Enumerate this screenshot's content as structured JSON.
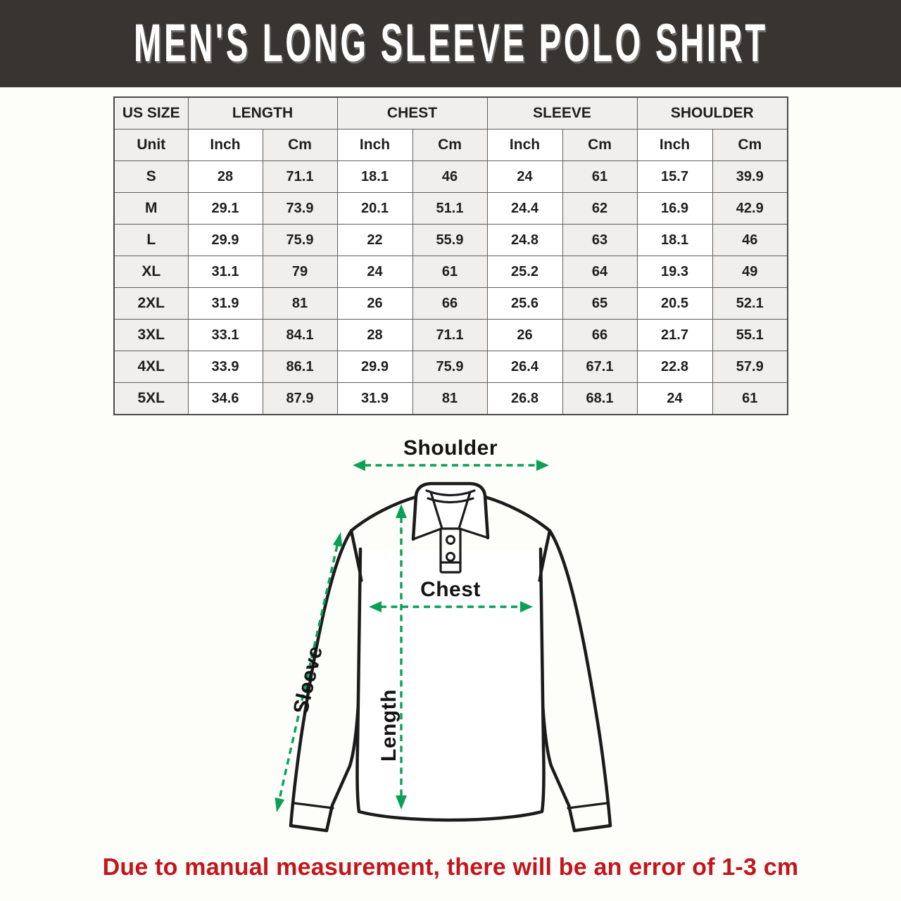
{
  "header": {
    "title": "MEN'S LONG SLEEVE POLO SHIRT"
  },
  "table": {
    "groups": [
      {
        "label": "US SIZE"
      },
      {
        "label": "LENGTH"
      },
      {
        "label": "CHEST"
      },
      {
        "label": "SLEEVE"
      },
      {
        "label": "SHOULDER"
      }
    ],
    "unit_row": [
      "Unit",
      "Inch",
      "Cm",
      "Inch",
      "Cm",
      "Inch",
      "Cm",
      "Inch",
      "Cm"
    ],
    "rows": [
      {
        "size": "S",
        "values": [
          "28",
          "71.1",
          "18.1",
          "46",
          "24",
          "61",
          "15.7",
          "39.9"
        ]
      },
      {
        "size": "M",
        "values": [
          "29.1",
          "73.9",
          "20.1",
          "51.1",
          "24.4",
          "62",
          "16.9",
          "42.9"
        ]
      },
      {
        "size": "L",
        "values": [
          "29.9",
          "75.9",
          "22",
          "55.9",
          "24.8",
          "63",
          "18.1",
          "46"
        ]
      },
      {
        "size": "XL",
        "values": [
          "31.1",
          "79",
          "24",
          "61",
          "25.2",
          "64",
          "19.3",
          "49"
        ]
      },
      {
        "size": "2XL",
        "values": [
          "31.9",
          "81",
          "26",
          "66",
          "25.6",
          "65",
          "20.5",
          "52.1"
        ]
      },
      {
        "size": "3XL",
        "values": [
          "33.1",
          "84.1",
          "28",
          "71.1",
          "26",
          "66",
          "21.7",
          "55.1"
        ]
      },
      {
        "size": "4XL",
        "values": [
          "33.9",
          "86.1",
          "29.9",
          "75.9",
          "26.4",
          "67.1",
          "22.8",
          "57.9"
        ]
      },
      {
        "size": "5XL",
        "values": [
          "34.6",
          "87.9",
          "31.9",
          "81",
          "26.8",
          "68.1",
          "24",
          "61"
        ]
      }
    ]
  },
  "diagram": {
    "labels": {
      "shoulder": "Shoulder",
      "chest": "Chest",
      "sleeve": "Sleeve",
      "length": "Length"
    }
  },
  "footer": {
    "note": "Due to manual measurement, there will be an error of 1-3 cm"
  },
  "colors": {
    "band_background": "#383432",
    "arrow_green": "#0aa156",
    "note_red": "#c3151b",
    "cell_gray": "#f0efed",
    "table_border": "#5f5f5f"
  }
}
